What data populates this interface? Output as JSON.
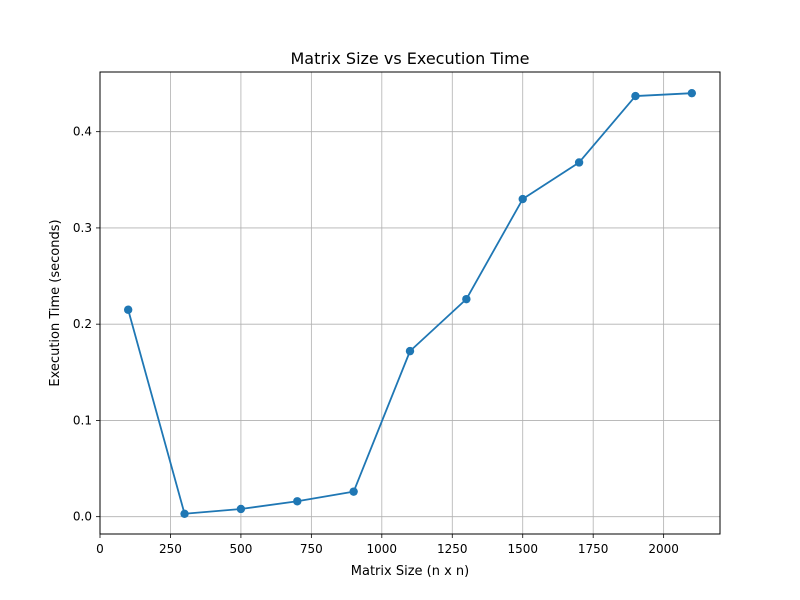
{
  "chart_data": {
    "type": "line",
    "title": "Matrix Size vs Execution Time",
    "xlabel": "Matrix Size (n x n)",
    "ylabel": "Execution Time (seconds)",
    "x": [
      100,
      300,
      500,
      700,
      900,
      1100,
      1300,
      1500,
      1700,
      1900,
      2100
    ],
    "series": [
      {
        "values": [
          0.215,
          0.003,
          0.008,
          0.016,
          0.026,
          0.172,
          0.226,
          0.33,
          0.368,
          0.437,
          0.44
        ],
        "color": "#1f77b4",
        "marker": "circle"
      }
    ],
    "xlim": [
      0,
      2200
    ],
    "ylim": [
      -0.018,
      0.462
    ],
    "xticks": [
      0,
      250,
      500,
      750,
      1000,
      1250,
      1500,
      1750,
      2000
    ],
    "xtick_labels": [
      "0",
      "250",
      "500",
      "750",
      "1000",
      "1250",
      "1500",
      "1750",
      "2000"
    ],
    "yticks": [
      0.0,
      0.1,
      0.2,
      0.3,
      0.4
    ],
    "ytick_labels": [
      "0.0",
      "0.1",
      "0.2",
      "0.3",
      "0.4"
    ],
    "grid": true,
    "grid_color": "#b0b0b0",
    "legend": false
  }
}
